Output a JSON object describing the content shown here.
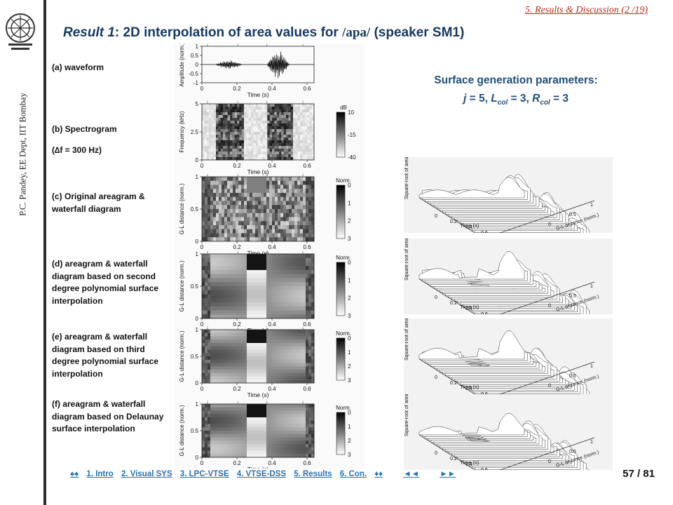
{
  "header": {
    "section": "5. Results & Discussion (2 /19)",
    "title_result": "Result 1",
    "title_mid": ": 2D interpolation of area values for ",
    "title_phoneme": "/apa/",
    "title_tail": " (speaker SM1)"
  },
  "sidebar": {
    "author": "P.C. Pandey, EE Dept, IIT Bombay"
  },
  "panels": [
    {
      "label": "(a) waveform"
    },
    {
      "label": "(b) Spectrogram"
    },
    {
      "label": "(∆f = 300 Hz)"
    },
    {
      "label": "(c) Original areagram & waterfall diagram"
    },
    {
      "label": "(d) areagram & waterfall diagram based on second degree polynomial surface interpolation"
    },
    {
      "label": "(e) areagram & waterfall diagram based on third degree polynomial surface interpolation"
    },
    {
      "label": "(f) areagram & waterfall diagram based on Delaunay surface interpolation"
    }
  ],
  "plots": {
    "time_label": "Time (s)",
    "time_ticks": [
      "0",
      "0.2",
      "0.4",
      "0.6"
    ],
    "waveform": {
      "ylabel": "Amplitude (norm.)",
      "yticks": [
        "1",
        "0.5",
        "0",
        "-0.5",
        "-1"
      ]
    },
    "spectrogram": {
      "ylabel": "Frequency (kHz)",
      "yticks": [
        "5",
        "2.5",
        "0"
      ],
      "cbar_title": "dB",
      "cbar_ticks": [
        "10",
        "-15",
        "-40"
      ]
    },
    "areagram": {
      "ylabel": "G-L distance (norm.)",
      "yticks": [
        "1",
        "0.5",
        "0"
      ],
      "cbar_title": "Norm.",
      "cbar_ticks": [
        "0",
        "1",
        "2",
        "3"
      ]
    },
    "waterfall": {
      "zlabel": "Square-root of area",
      "xlabel": "Time (s)",
      "ylabel": "G-L distance (norm.)",
      "tticks": [
        "0",
        "0.2",
        "0.4",
        "0.6"
      ],
      "dticks": [
        "0",
        "0.5",
        "1"
      ]
    }
  },
  "params": {
    "title": "Surface generation parameters:",
    "j_label": "j",
    "j_value": "5",
    "lcol_main": "L",
    "lcol_sub": "col",
    "lcol_value": "3",
    "rcol_main": "R",
    "rcol_sub": "col",
    "rcol_value": "3"
  },
  "footer": {
    "nav_first": "♠♠",
    "links": [
      "1. Intro",
      "2. Visual SYS",
      "3. LPC-VTSE",
      "4. VTSE-DSS",
      "5. Results",
      "6. Con."
    ],
    "nav_up": "♦♦",
    "nav_prev": "◄◄",
    "nav_next": "►►",
    "page": "57 / 81"
  },
  "colors": {
    "title": "#163a63",
    "section": "#c0241c",
    "params": "#1e4f7d",
    "link": "#2574b5"
  }
}
